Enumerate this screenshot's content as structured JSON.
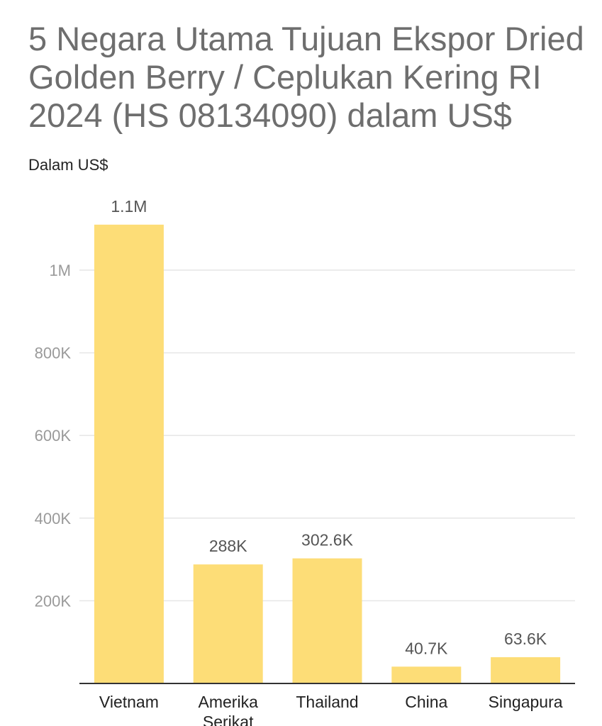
{
  "chart_data": {
    "type": "bar",
    "title": "5 Negara Utama Tujuan Ekspor Dried Golden Berry / Ceplukan Kering RI 2024 (HS 08134090) dalam US$",
    "subtitle": "Dalam US$",
    "categories": [
      "Vietnam",
      "Amerika Serikat",
      "Thailand",
      "China",
      "Singapura"
    ],
    "category_lines": [
      [
        "Vietnam"
      ],
      [
        "Amerika",
        "Serikat"
      ],
      [
        "Thailand"
      ],
      [
        "China"
      ],
      [
        "Singapura"
      ]
    ],
    "values": [
      1110000,
      288000,
      302600,
      40700,
      63600
    ],
    "data_labels": [
      "1.1M",
      "288K",
      "302.6K",
      "40.7K",
      "63.6K"
    ],
    "yticks": [
      {
        "value": 200000,
        "label": "200K"
      },
      {
        "value": 400000,
        "label": "400K"
      },
      {
        "value": 600000,
        "label": "600K"
      },
      {
        "value": 800000,
        "label": "800K"
      },
      {
        "value": 1000000,
        "label": "1M"
      }
    ],
    "ylim": [
      0,
      1200000
    ],
    "grid": true,
    "bar_color": "#fddd77"
  }
}
